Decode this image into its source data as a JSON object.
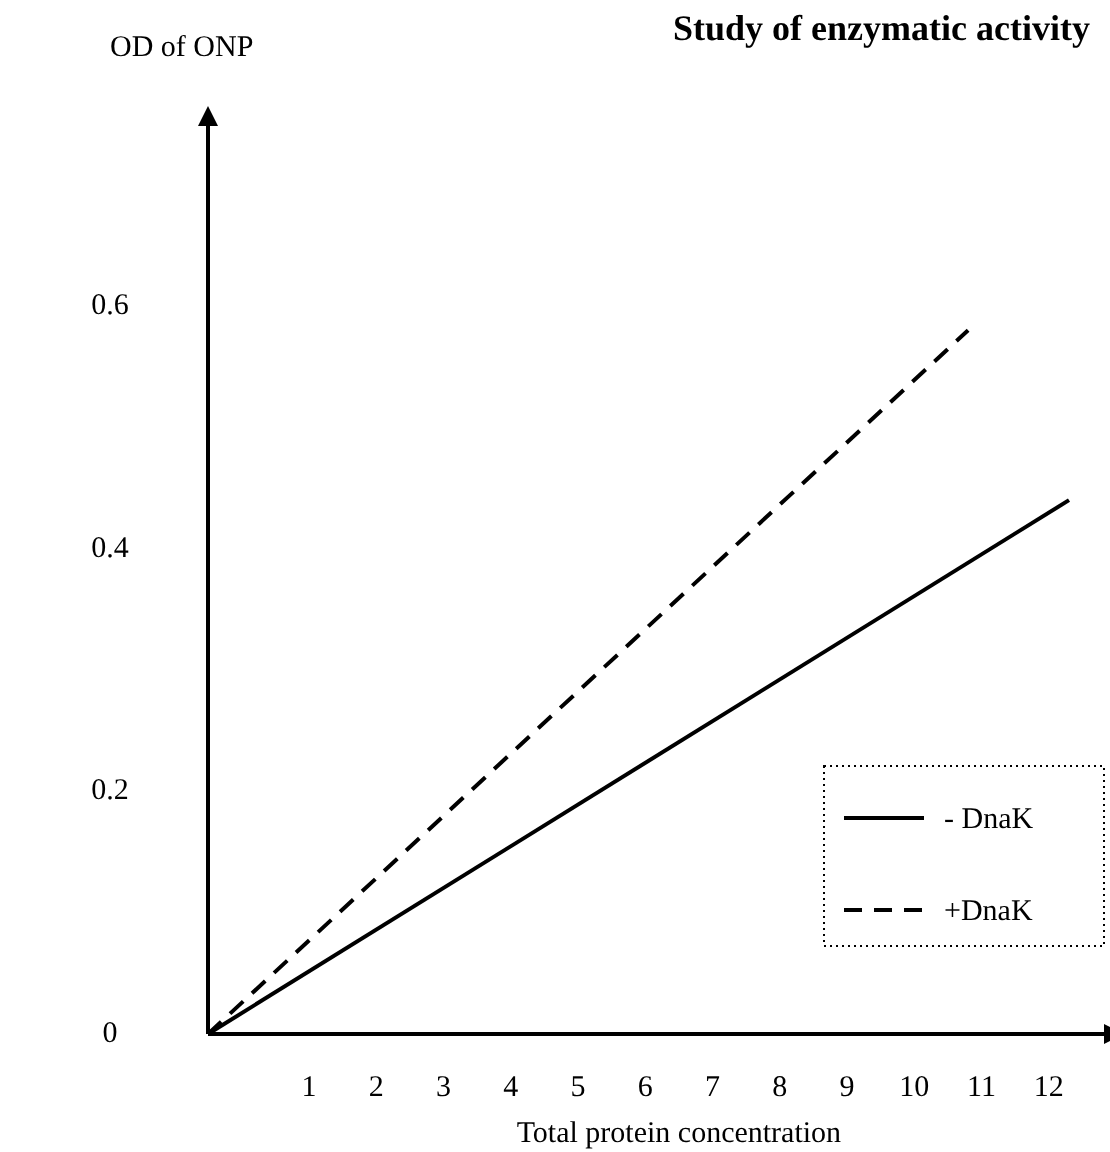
{
  "chart_data": {
    "type": "line",
    "title": "Study of enzymatic activity",
    "xlabel": "Total protein concentration",
    "ylabel": "OD of  ONP",
    "xlim": [
      -0.5,
      12.85
    ],
    "ylim": [
      0,
      0.75
    ],
    "xticks": [
      1,
      2,
      3,
      4,
      5,
      6,
      7,
      8,
      9,
      10,
      11,
      12
    ],
    "yticks": [
      0,
      0.2,
      0.4,
      0.6
    ],
    "series": [
      {
        "name": "- DnaK",
        "color": "#000000",
        "line_style": "solid",
        "x": [
          -0.5,
          12.3
        ],
        "values": [
          0,
          0.44
        ]
      },
      {
        "name": "+DnaK",
        "color": "#000000",
        "line_style": "dashed",
        "x": [
          -0.5,
          10.8
        ],
        "values": [
          0,
          0.58
        ]
      }
    ],
    "grid": false,
    "legend": "bottom right",
    "marker": "none"
  }
}
